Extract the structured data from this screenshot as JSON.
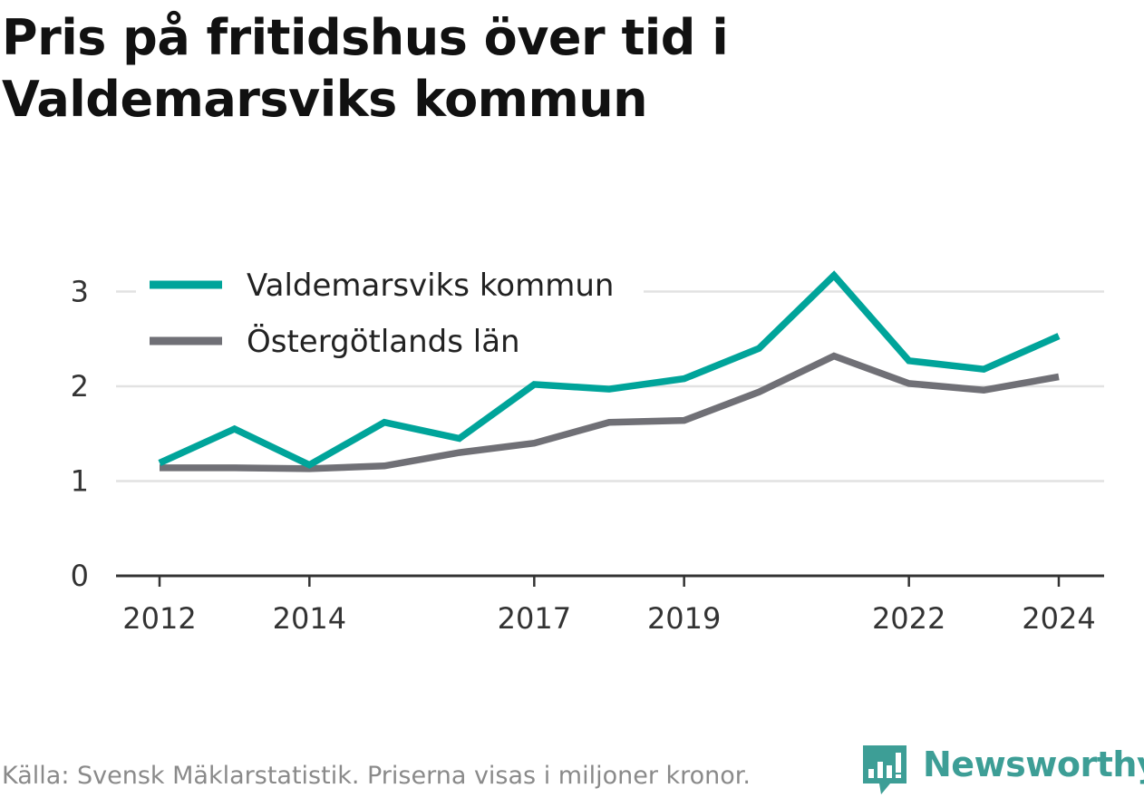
{
  "title": "Pris på fritidshus över tid i Valdemarsviks kommun",
  "footer": "Källa: Svensk Mäklarstatistik. Priserna visas i miljoner kronor.",
  "brand": {
    "name": "Newsworthy",
    "color": "#3d9e96"
  },
  "chart_data": {
    "type": "line",
    "title": "Pris på fritidshus över tid i Valdemarsviks kommun",
    "xlabel": "",
    "ylabel": "",
    "x": [
      2012,
      2013,
      2014,
      2015,
      2016,
      2017,
      2018,
      2019,
      2020,
      2021,
      2022,
      2023,
      2024
    ],
    "x_ticks": [
      2012,
      2014,
      2017,
      2019,
      2022,
      2024
    ],
    "y_ticks": [
      0,
      1,
      2,
      3
    ],
    "ylim": [
      0,
      3.3
    ],
    "grid": true,
    "legend_position": "top-left",
    "series": [
      {
        "name": "Valdemarsviks kommun",
        "color": "#00a49a",
        "values": [
          1.19,
          1.55,
          1.17,
          1.62,
          1.45,
          2.02,
          1.97,
          2.08,
          2.4,
          3.17,
          2.27,
          2.18,
          2.53
        ]
      },
      {
        "name": "Östergötlands län",
        "color": "#707076",
        "values": [
          1.14,
          1.14,
          1.13,
          1.16,
          1.3,
          1.4,
          1.62,
          1.64,
          1.94,
          2.32,
          2.03,
          1.96,
          2.1
        ]
      }
    ]
  }
}
